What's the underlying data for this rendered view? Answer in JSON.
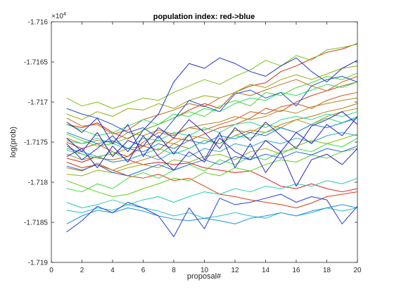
{
  "figure": {
    "title": "population index:  red->blue",
    "xlabel": "proposal#",
    "ylabel": "log(prob)",
    "y_exponent_base": "×10",
    "y_exponent_power": "4"
  },
  "chart_data": {
    "type": "line",
    "title": "population index:  red->blue",
    "xlabel": "proposal#",
    "ylabel": "log(prob)",
    "xlim": [
      0,
      20
    ],
    "ylim": [
      -1.719,
      -1.716
    ],
    "y_multiplier": "×10^4",
    "x_ticks": [
      "0",
      "2",
      "4",
      "6",
      "8",
      "10",
      "12",
      "14",
      "16",
      "18",
      "20"
    ],
    "y_ticks": [
      "-1.716",
      "-1.7165",
      "-1.717",
      "-1.7175",
      "-1.718",
      "-1.7185",
      "-1.719"
    ],
    "grid": false,
    "legend": "none",
    "color_order": "population index from red to blue",
    "x": [
      1,
      2,
      3,
      4,
      5,
      6,
      7,
      8,
      9,
      10,
      11,
      12,
      13,
      14,
      15,
      16,
      17,
      18,
      19,
      20
    ],
    "series": [
      {
        "color": "#dd1f1f",
        "values": [
          -1.7177,
          -1.71775,
          -1.71768,
          -1.71775,
          -1.71772,
          -1.71778,
          -1.71775,
          -1.71778,
          -1.71776,
          -1.71782,
          -1.71785,
          -1.71788,
          -1.71786,
          -1.71795,
          -1.71805,
          -1.71808,
          -1.71802,
          -1.71808,
          -1.71812,
          -1.71808
        ]
      },
      {
        "color": "#d42e16",
        "values": [
          -1.71728,
          -1.71732,
          -1.71726,
          -1.71738,
          -1.71746,
          -1.71735,
          -1.71728,
          -1.7172,
          -1.7171,
          -1.71702,
          -1.71708,
          -1.71688,
          -1.7168,
          -1.71676,
          -1.71662,
          -1.71655,
          -1.71646,
          -1.71638,
          -1.71634,
          -1.71627
        ]
      },
      {
        "color": "#e03a12",
        "values": [
          -1.71775,
          -1.71782,
          -1.71778,
          -1.71785,
          -1.71792,
          -1.71795,
          -1.7179,
          -1.71798,
          -1.71795,
          -1.71805,
          -1.71815,
          -1.71818,
          -1.71822,
          -1.71825,
          -1.71828,
          -1.71832,
          -1.71826,
          -1.71818,
          -1.71815,
          -1.71812
        ]
      },
      {
        "color": "#c8461a",
        "values": [
          -1.7175,
          -1.71758,
          -1.71752,
          -1.71762,
          -1.71768,
          -1.71755,
          -1.7176,
          -1.71745,
          -1.71748,
          -1.7174,
          -1.71732,
          -1.71728,
          -1.7172,
          -1.71708,
          -1.71712,
          -1.717,
          -1.71692,
          -1.71686,
          -1.7168,
          -1.71675
        ]
      },
      {
        "color": "#cf5a14",
        "values": [
          -1.71755,
          -1.71765,
          -1.7177,
          -1.71772,
          -1.71768,
          -1.7175,
          -1.71738,
          -1.71742,
          -1.71732,
          -1.71735,
          -1.71728,
          -1.71722,
          -1.71712,
          -1.71715,
          -1.71706,
          -1.71702,
          -1.71708,
          -1.71698,
          -1.71692,
          -1.71688
        ]
      },
      {
        "color": "#c26a18",
        "values": [
          -1.7172,
          -1.7173,
          -1.71728,
          -1.7174,
          -1.71735,
          -1.71722,
          -1.71716,
          -1.7171,
          -1.71702,
          -1.71706,
          -1.71695,
          -1.71688,
          -1.71692,
          -1.71685,
          -1.71678,
          -1.71672,
          -1.7168,
          -1.71686,
          -1.71675,
          -1.71668
        ]
      },
      {
        "color": "#bb7818",
        "values": [
          -1.71782,
          -1.71786,
          -1.71776,
          -1.71785,
          -1.71778,
          -1.71772,
          -1.71766,
          -1.71752,
          -1.71758,
          -1.71748,
          -1.71752,
          -1.71742,
          -1.71735,
          -1.71738,
          -1.71728,
          -1.71722,
          -1.71718,
          -1.71712,
          -1.71708,
          -1.71702
        ]
      },
      {
        "color": "#b08a1c",
        "values": [
          -1.71745,
          -1.71752,
          -1.71748,
          -1.7175,
          -1.71738,
          -1.71742,
          -1.71735,
          -1.7174,
          -1.71732,
          -1.71728,
          -1.71725,
          -1.71718,
          -1.71722,
          -1.71718,
          -1.7171,
          -1.71714,
          -1.71706,
          -1.71702,
          -1.71698,
          -1.71695
        ]
      },
      {
        "color": "#a59a16",
        "values": [
          -1.71765,
          -1.71772,
          -1.71768,
          -1.71765,
          -1.71758,
          -1.71755,
          -1.71748,
          -1.71752,
          -1.71742,
          -1.71745,
          -1.71752,
          -1.71735,
          -1.71738,
          -1.71728,
          -1.71732,
          -1.71722,
          -1.71728,
          -1.71718,
          -1.71712,
          -1.71708
        ]
      },
      {
        "color": "#9aa814",
        "values": [
          -1.71715,
          -1.71722,
          -1.71712,
          -1.71718,
          -1.71708,
          -1.7171,
          -1.71702,
          -1.71708,
          -1.71698,
          -1.71692,
          -1.71695,
          -1.71688,
          -1.71678,
          -1.71682,
          -1.71672,
          -1.71666,
          -1.71672,
          -1.71665,
          -1.71658,
          -1.71655
        ]
      },
      {
        "color": "#8ab614",
        "values": [
          -1.7179,
          -1.71792,
          -1.71785,
          -1.71788,
          -1.71782,
          -1.71778,
          -1.71782,
          -1.71772,
          -1.71775,
          -1.71768,
          -1.71765,
          -1.71772,
          -1.71762,
          -1.71758,
          -1.71765,
          -1.71755,
          -1.71748,
          -1.71752,
          -1.71746,
          -1.7174
        ]
      },
      {
        "color": "#7cc418",
        "values": [
          -1.71695,
          -1.71705,
          -1.717,
          -1.71708,
          -1.71702,
          -1.71695,
          -1.71698,
          -1.71688,
          -1.7168,
          -1.71672,
          -1.71678,
          -1.71668,
          -1.7166,
          -1.71648,
          -1.71655,
          -1.71642,
          -1.71648,
          -1.71635,
          -1.71632,
          -1.71628
        ]
      },
      {
        "color": "#64cc1e",
        "values": [
          -1.71798,
          -1.71805,
          -1.71812,
          -1.71818,
          -1.71815,
          -1.71808,
          -1.71802,
          -1.71795,
          -1.71798,
          -1.71788,
          -1.71792,
          -1.71782,
          -1.71786,
          -1.71778,
          -1.71772,
          -1.71775,
          -1.71766,
          -1.7177,
          -1.71762,
          -1.71758
        ]
      },
      {
        "color": "#4ed42a",
        "values": [
          -1.7174,
          -1.71748,
          -1.71755,
          -1.71752,
          -1.71745,
          -1.71735,
          -1.71728,
          -1.7172,
          -1.71712,
          -1.71718,
          -1.71705,
          -1.71698,
          -1.71705,
          -1.71688,
          -1.71692,
          -1.71682,
          -1.71676,
          -1.71668,
          -1.71672,
          -1.71664
        ]
      },
      {
        "color": "#3cdc3c",
        "values": [
          -1.71808,
          -1.71812,
          -1.71802,
          -1.71808,
          -1.71795,
          -1.71788,
          -1.71795,
          -1.71785,
          -1.71778,
          -1.71786,
          -1.71772,
          -1.71778,
          -1.71768,
          -1.71772,
          -1.71762,
          -1.71758,
          -1.71762,
          -1.71752,
          -1.71756,
          -1.71745
        ]
      },
      {
        "color": "#2ee05a",
        "values": [
          -1.71728,
          -1.71735,
          -1.71742,
          -1.71738,
          -1.7173,
          -1.71722,
          -1.71728,
          -1.71715,
          -1.71718,
          -1.71708,
          -1.71712,
          -1.71702,
          -1.71695,
          -1.71698,
          -1.71688,
          -1.71692,
          -1.71685,
          -1.71678,
          -1.71682,
          -1.71675
        ]
      },
      {
        "color": "#28dc78",
        "values": [
          -1.7176,
          -1.71765,
          -1.7177,
          -1.71762,
          -1.71772,
          -1.71765,
          -1.71758,
          -1.71765,
          -1.71758,
          -1.71748,
          -1.71752,
          -1.71742,
          -1.71745,
          -1.71738,
          -1.71732,
          -1.71738,
          -1.71728,
          -1.7172,
          -1.71726,
          -1.71718
        ]
      },
      {
        "color": "#26d898",
        "values": [
          -1.71748,
          -1.71752,
          -1.71745,
          -1.71752,
          -1.71758,
          -1.71745,
          -1.71748,
          -1.71738,
          -1.71742,
          -1.71732,
          -1.71738,
          -1.71728,
          -1.71725,
          -1.71732,
          -1.71722,
          -1.71718,
          -1.71722,
          -1.71715,
          -1.71718,
          -1.71712
        ]
      },
      {
        "color": "#24ccb4",
        "values": [
          -1.71825,
          -1.71832,
          -1.71828,
          -1.71822,
          -1.71828,
          -1.71822,
          -1.71818,
          -1.71825,
          -1.71818,
          -1.71812,
          -1.71815,
          -1.71808,
          -1.71812,
          -1.71805,
          -1.71808,
          -1.71802,
          -1.71805,
          -1.71798,
          -1.71802,
          -1.71795
        ]
      },
      {
        "color": "#22bcca",
        "values": [
          -1.71835,
          -1.71838,
          -1.71832,
          -1.71835,
          -1.71828,
          -1.71832,
          -1.71836,
          -1.71842,
          -1.71838,
          -1.71845,
          -1.71842,
          -1.71838,
          -1.71842,
          -1.71845,
          -1.71838,
          -1.71842,
          -1.71838,
          -1.71832,
          -1.71836,
          -1.71832
        ]
      },
      {
        "color": "#22a8d6",
        "values": [
          -1.71758,
          -1.71762,
          -1.71768,
          -1.71775,
          -1.71772,
          -1.71765,
          -1.71772,
          -1.71762,
          -1.71768,
          -1.71758,
          -1.71762,
          -1.71752,
          -1.71756,
          -1.71748,
          -1.71752,
          -1.71745,
          -1.7175,
          -1.71742,
          -1.71738,
          -1.71742
        ]
      },
      {
        "color": "#2290dc",
        "values": [
          -1.71852,
          -1.71842,
          -1.71835,
          -1.71838,
          -1.71832,
          -1.71836,
          -1.71842,
          -1.71846,
          -1.71848,
          -1.71845,
          -1.71848,
          -1.71852,
          -1.71845,
          -1.71842,
          -1.71838,
          -1.71842,
          -1.71836,
          -1.71832,
          -1.71828,
          -1.71832
        ]
      },
      {
        "color": "#2278dc",
        "values": [
          -1.71738,
          -1.71745,
          -1.71752,
          -1.71748,
          -1.71758,
          -1.71762,
          -1.71752,
          -1.71758,
          -1.71748,
          -1.71752,
          -1.71742,
          -1.71746,
          -1.71738,
          -1.71742,
          -1.71732,
          -1.71738,
          -1.71728,
          -1.71732,
          -1.71726,
          -1.7172
        ]
      },
      {
        "color": "#2264d8",
        "values": [
          -1.7178,
          -1.71785,
          -1.71778,
          -1.71788,
          -1.71792,
          -1.71785,
          -1.71778,
          -1.71785,
          -1.71778,
          -1.71772,
          -1.71778,
          -1.71768,
          -1.71772,
          -1.71765,
          -1.7177,
          -1.71762,
          -1.71766,
          -1.71758,
          -1.71762,
          -1.71755
        ]
      },
      {
        "color": "#2250d2",
        "values": [
          -1.71708,
          -1.71715,
          -1.7172,
          -1.71728,
          -1.71738,
          -1.71732,
          -1.71745,
          -1.71722,
          -1.71698,
          -1.71705,
          -1.71712,
          -1.7169,
          -1.71685,
          -1.71695,
          -1.71688,
          -1.71705,
          -1.7168,
          -1.71672,
          -1.71668,
          -1.71675
        ]
      },
      {
        "color": "#2240ca",
        "values": [
          -1.71862,
          -1.71848,
          -1.7183,
          -1.71838,
          -1.71825,
          -1.71832,
          -1.71842,
          -1.71868,
          -1.71832,
          -1.71858,
          -1.7182,
          -1.71828,
          -1.71825,
          -1.7182,
          -1.71815,
          -1.71825,
          -1.71818,
          -1.71822,
          -1.71852,
          -1.7183
        ]
      },
      {
        "color": "#2234c4",
        "values": [
          -1.71752,
          -1.71772,
          -1.71758,
          -1.71742,
          -1.71762,
          -1.71735,
          -1.71715,
          -1.71675,
          -1.71652,
          -1.71658,
          -1.71645,
          -1.71652,
          -1.71662,
          -1.71668,
          -1.71655,
          -1.71645,
          -1.71662,
          -1.71675,
          -1.71658,
          -1.71648
        ]
      },
      {
        "color": "#2428bc",
        "values": [
          -1.71725,
          -1.71738,
          -1.7172,
          -1.71752,
          -1.71728,
          -1.71768,
          -1.71742,
          -1.71765,
          -1.7174,
          -1.71772,
          -1.71738,
          -1.71782,
          -1.71752,
          -1.71788,
          -1.71762,
          -1.71805,
          -1.71772,
          -1.71765,
          -1.71778,
          -1.71758
        ]
      },
      {
        "color": "#2a22b4",
        "values": [
          -1.71768,
          -1.71758,
          -1.71782,
          -1.71755,
          -1.71775,
          -1.71742,
          -1.71768,
          -1.71785,
          -1.71762,
          -1.71775,
          -1.71745,
          -1.71762,
          -1.71772,
          -1.71748,
          -1.71762,
          -1.71738,
          -1.71752,
          -1.71728,
          -1.71742,
          -1.71718
        ]
      },
      {
        "color": "#3020aa",
        "values": [
          -1.71745,
          -1.71762,
          -1.71738,
          -1.71768,
          -1.71748,
          -1.71755,
          -1.71732,
          -1.71745,
          -1.71722,
          -1.71738,
          -1.71758,
          -1.71732,
          -1.71748,
          -1.71725,
          -1.71742,
          -1.71758,
          -1.7173,
          -1.71722,
          -1.71712,
          -1.71728
        ]
      }
    ]
  }
}
